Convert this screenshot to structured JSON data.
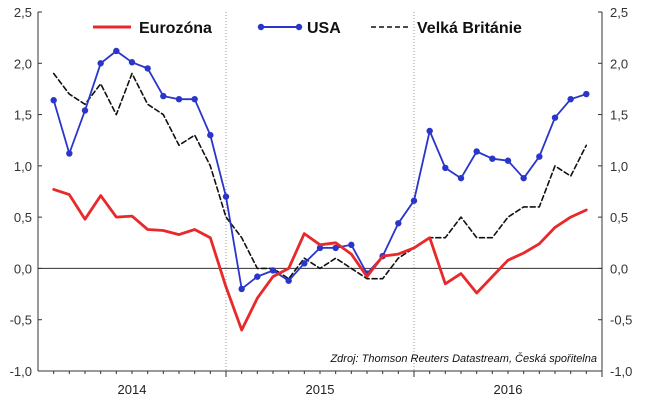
{
  "chart_data": {
    "type": "line",
    "title": "",
    "xlabel": "",
    "ylabel": "",
    "ylim": [
      -1.0,
      2.5
    ],
    "xlim": [
      "2013-12",
      "2016-12"
    ],
    "y_ticks": [
      -1.0,
      -0.5,
      0.0,
      0.5,
      1.0,
      1.5,
      2.0,
      2.5
    ],
    "y_tick_labels": [
      "-1,0",
      "-0,5",
      "0,0",
      "0,5",
      "1,0",
      "1,5",
      "2,0",
      "2,5"
    ],
    "year_labels": [
      {
        "year": 2014,
        "label": "2014"
      },
      {
        "year": 2015,
        "label": "2015"
      },
      {
        "year": 2016,
        "label": "2016"
      }
    ],
    "grid": true,
    "legend_position": "top",
    "source_note": "Zdroj: Thomson Reuters Datastream, Česká spořitelna",
    "series": [
      {
        "name": "Eurozóna",
        "color": "#e8292b",
        "style": "solid",
        "x": [
          "2014-01",
          "2014-02",
          "2014-03",
          "2014-04",
          "2014-05",
          "2014-06",
          "2014-07",
          "2014-08",
          "2014-09",
          "2014-10",
          "2014-11",
          "2014-12",
          "2015-01",
          "2015-02",
          "2015-03",
          "2015-04",
          "2015-05",
          "2015-06",
          "2015-07",
          "2015-08",
          "2015-09",
          "2015-10",
          "2015-11",
          "2015-12",
          "2016-01",
          "2016-02",
          "2016-03",
          "2016-04",
          "2016-05",
          "2016-06",
          "2016-07",
          "2016-08",
          "2016-09",
          "2016-10",
          "2016-11"
        ],
        "values": [
          0.77,
          0.72,
          0.48,
          0.71,
          0.5,
          0.51,
          0.38,
          0.37,
          0.33,
          0.38,
          0.3,
          -0.18,
          -0.6,
          -0.29,
          -0.08,
          0.0,
          0.34,
          0.23,
          0.25,
          0.14,
          -0.08,
          0.12,
          0.14,
          0.2,
          0.3,
          -0.15,
          -0.05,
          -0.24,
          -0.08,
          0.08,
          0.15,
          0.24,
          0.4,
          0.5,
          0.57
        ]
      },
      {
        "name": "USA",
        "color": "#2a35c9",
        "style": "solid-markers",
        "x": [
          "2014-01",
          "2014-02",
          "2014-03",
          "2014-04",
          "2014-05",
          "2014-06",
          "2014-07",
          "2014-08",
          "2014-09",
          "2014-10",
          "2014-11",
          "2014-12",
          "2015-01",
          "2015-02",
          "2015-03",
          "2015-04",
          "2015-05",
          "2015-06",
          "2015-07",
          "2015-08",
          "2015-09",
          "2015-10",
          "2015-11",
          "2015-12",
          "2016-01",
          "2016-02",
          "2016-03",
          "2016-04",
          "2016-05",
          "2016-06",
          "2016-07",
          "2016-08",
          "2016-09",
          "2016-10",
          "2016-11"
        ],
        "values": [
          1.64,
          1.12,
          1.54,
          2.0,
          2.12,
          2.01,
          1.95,
          1.68,
          1.65,
          1.65,
          1.3,
          0.7,
          -0.2,
          -0.08,
          -0.02,
          -0.12,
          0.05,
          0.2,
          0.2,
          0.23,
          -0.05,
          0.12,
          0.44,
          0.66,
          1.34,
          0.98,
          0.88,
          1.14,
          1.07,
          1.05,
          0.88,
          1.09,
          1.47,
          1.65,
          1.7
        ]
      },
      {
        "name": "Velká Británie",
        "color": "#111111",
        "style": "dashed",
        "x": [
          "2014-01",
          "2014-02",
          "2014-03",
          "2014-04",
          "2014-05",
          "2014-06",
          "2014-07",
          "2014-08",
          "2014-09",
          "2014-10",
          "2014-11",
          "2014-12",
          "2015-01",
          "2015-02",
          "2015-03",
          "2015-04",
          "2015-05",
          "2015-06",
          "2015-07",
          "2015-08",
          "2015-09",
          "2015-10",
          "2015-11",
          "2015-12",
          "2016-01",
          "2016-02",
          "2016-03",
          "2016-04",
          "2016-05",
          "2016-06",
          "2016-07",
          "2016-08",
          "2016-09",
          "2016-10",
          "2016-11"
        ],
        "values": [
          1.9,
          1.7,
          1.6,
          1.8,
          1.5,
          1.9,
          1.6,
          1.5,
          1.2,
          1.3,
          1.0,
          0.5,
          0.3,
          0.0,
          0.0,
          -0.1,
          0.1,
          0.0,
          0.1,
          0.0,
          -0.1,
          -0.1,
          0.1,
          0.2,
          0.3,
          0.3,
          0.5,
          0.3,
          0.3,
          0.5,
          0.6,
          0.6,
          1.0,
          0.9,
          1.2
        ]
      }
    ]
  }
}
